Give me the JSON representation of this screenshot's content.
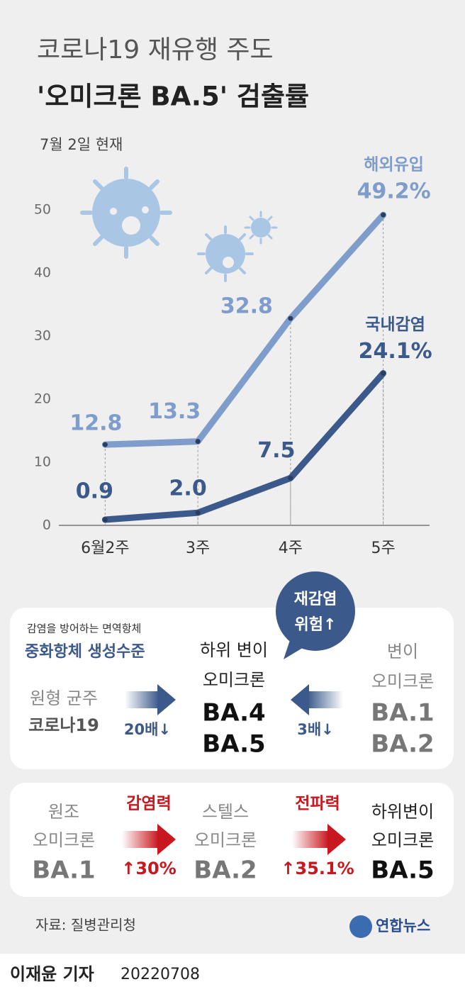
{
  "chart_data": {
    "type": "line",
    "title_lines": [
      "코로나19 재유행 주도",
      "'오미크론 BA.5' 검출률"
    ],
    "subtitle": "7월 2일 현재",
    "categories": [
      "6월2주",
      "3주",
      "4주",
      "5주"
    ],
    "series": [
      {
        "name": "해외유입",
        "color": "#7f9dcb",
        "values": [
          12.8,
          13.3,
          32.8,
          49.2
        ],
        "value_labels": [
          "12.8",
          "13.3",
          "32.8",
          "49.2%"
        ]
      },
      {
        "name": "국내감염",
        "color": "#3b5a8b",
        "values": [
          0.9,
          2.0,
          7.5,
          24.1
        ],
        "value_labels": [
          "0.9",
          "2.0",
          "7.5",
          "24.1%"
        ]
      }
    ],
    "ylim": [
      0,
      50
    ],
    "yticks": [
      0,
      10,
      20,
      30,
      40,
      50
    ],
    "grid": false
  },
  "immunity": {
    "caption": "감염을 방어하는 면역항체",
    "heading": "중화항체 생성수준",
    "left": [
      "원형 균주",
      "코로나19"
    ],
    "left_ratio": "20배↓",
    "center": [
      "하위 변이",
      "오미크론",
      "BA.4",
      "BA.5"
    ],
    "right": [
      "변이",
      "오미크론",
      "BA.1",
      "BA.2"
    ],
    "right_ratio": "3배↓",
    "bubble": [
      "재감염",
      "위험↑"
    ]
  },
  "evolution": {
    "stages": [
      [
        "원조",
        "오미크론",
        "BA.1"
      ],
      [
        "스텔스",
        "오미크론",
        "BA.2"
      ],
      [
        "하위변이",
        "오미크론",
        "BA.5"
      ]
    ],
    "steps": [
      {
        "label": "감염력",
        "change": "↑30%"
      },
      {
        "label": "전파력",
        "change": "↑35.1%"
      }
    ]
  },
  "source": "자료: 질병관리청",
  "logo": "연합뉴스",
  "byline": "이재윤 기자",
  "date": "20220708"
}
